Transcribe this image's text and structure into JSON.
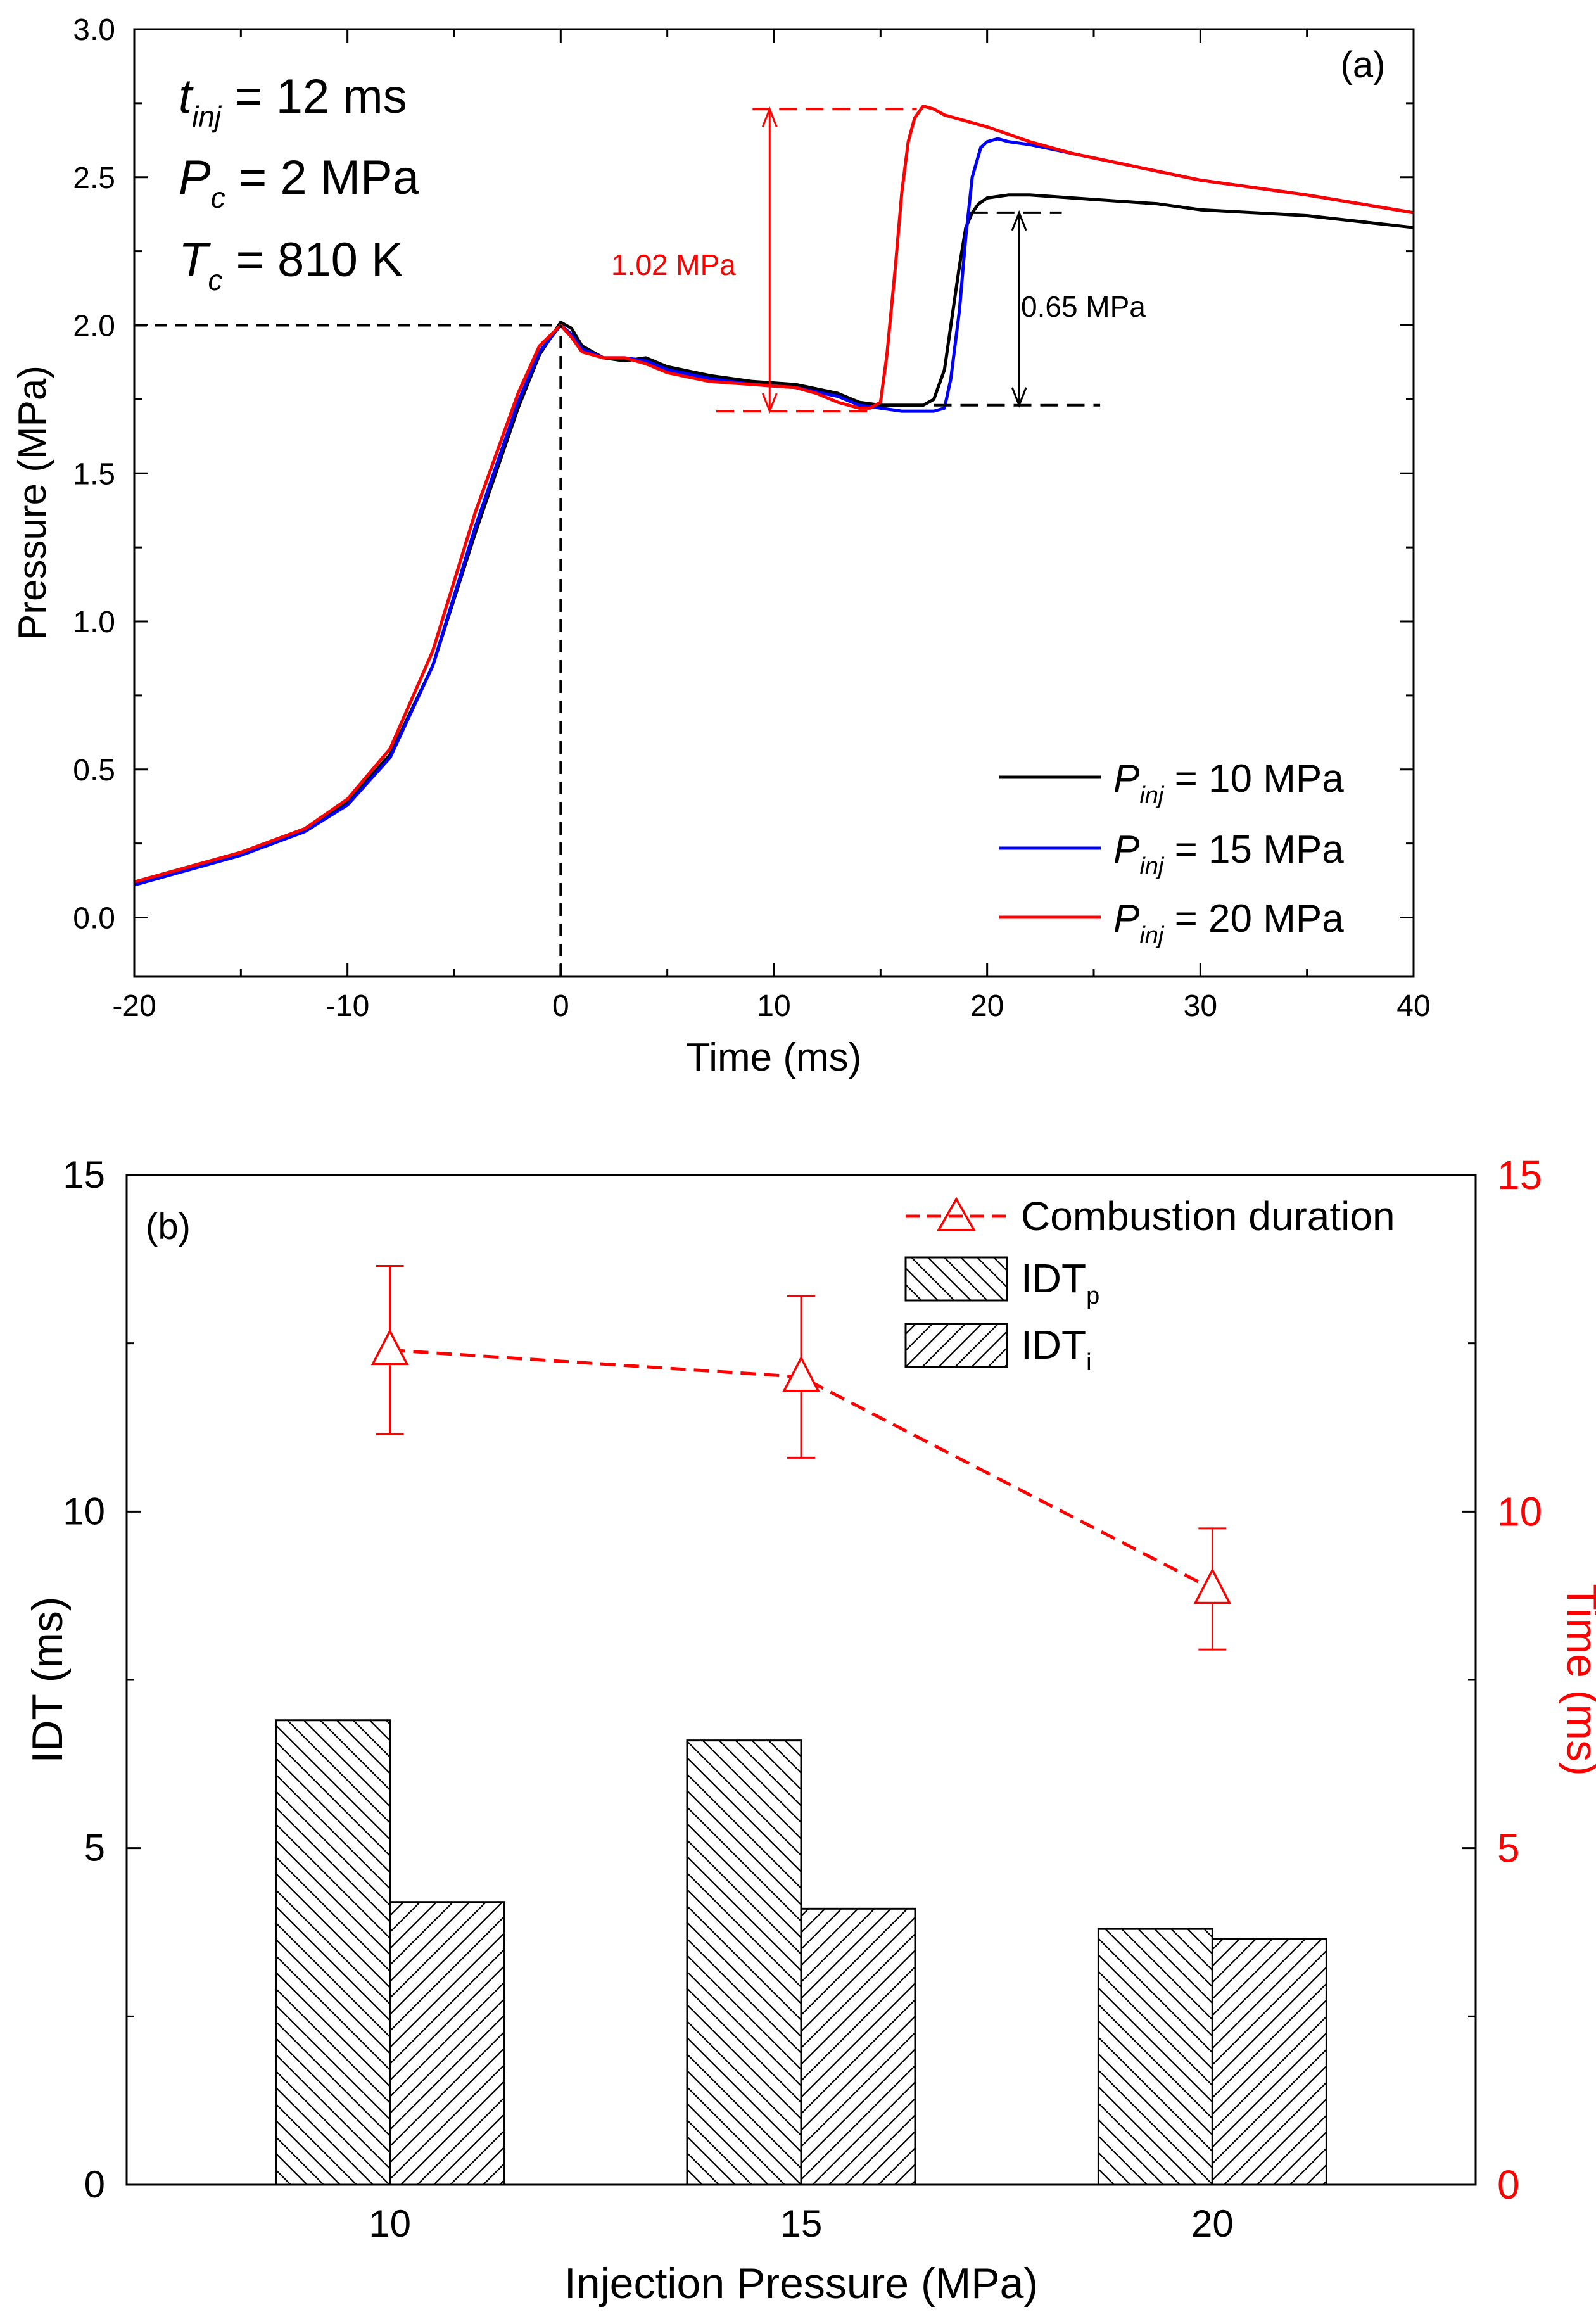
{
  "colors": {
    "black": "#000000",
    "blue": "#0000ff",
    "red": "#ff0000"
  },
  "chart_data": [
    {
      "panel": "(a)",
      "type": "line",
      "xlabel": "Time (ms)",
      "ylabel": "Pressure (MPa)",
      "xlim": [
        -20,
        40
      ],
      "ylim": [
        -0.2,
        3.0
      ],
      "xticks": [
        -20,
        -10,
        0,
        10,
        20,
        30,
        40
      ],
      "xtick_labels": [
        "-20",
        "-10",
        "0",
        "10",
        "20",
        "30",
        "40"
      ],
      "yticks": [
        0.0,
        0.5,
        1.0,
        1.5,
        2.0,
        2.5,
        3.0
      ],
      "ytick_labels": [
        "0.0",
        "0.5",
        "1.0",
        "1.5",
        "2.0",
        "2.5",
        "3.0"
      ],
      "conditions": [
        {
          "symbol": "t",
          "sub": "inj",
          "rest": " = 12 ms"
        },
        {
          "symbol": "P",
          "sub": "c",
          "rest": " = 2 MPa"
        },
        {
          "symbol": "T",
          "sub": "c",
          "rest": " = 810 K"
        }
      ],
      "legend": [
        {
          "symbol": "P",
          "sub": "inj",
          "rest": " = 10 MPa",
          "color": "#000000"
        },
        {
          "symbol": "P",
          "sub": "inj",
          "rest": " = 15 MPa",
          "color": "#0000ff"
        },
        {
          "symbol": "P",
          "sub": "inj",
          "rest": " = 20 MPa",
          "color": "#ff0000"
        }
      ],
      "annotations": {
        "red_rise_label": "1.02 MPa",
        "black_rise_label": "0.65 MPa",
        "red_rise": {
          "x": 9.8,
          "y_low": 1.71,
          "y_high": 2.73
        },
        "black_rise": {
          "x": 21.5,
          "y_low": 1.73,
          "y_high": 2.38
        },
        "red_dash_top": {
          "x1": 9.0,
          "x2": 16.7,
          "y": 2.73
        },
        "red_dash_bottom": {
          "x1": 7.3,
          "x2": 14.7,
          "y": 1.71
        },
        "black_dash_top": {
          "x1": 19.2,
          "x2": 23.5,
          "y": 2.38
        },
        "black_dash_bottom": {
          "x1": 17.5,
          "x2": 25.3,
          "y": 1.73
        },
        "peak_hline": {
          "x1": -20,
          "x2": 0,
          "y": 2.0
        },
        "peak_vline": {
          "x": 0,
          "y1": -0.2,
          "y2": 2.0
        }
      },
      "series": [
        {
          "name": "Pinj = 10 MPa",
          "color": "#000000",
          "x": [
            -20,
            -15,
            -12,
            -10,
            -8,
            -6,
            -4,
            -2,
            -1,
            0,
            0.5,
            1,
            2,
            3,
            4,
            5,
            7,
            9,
            11,
            13,
            14,
            15,
            16,
            17,
            17.5,
            18,
            18.3,
            18.7,
            19,
            19.3,
            19.6,
            20,
            21,
            22,
            24,
            26,
            28,
            30,
            35,
            40
          ],
          "y": [
            0.12,
            0.22,
            0.3,
            0.39,
            0.55,
            0.85,
            1.3,
            1.72,
            1.9,
            2.01,
            1.99,
            1.93,
            1.89,
            1.88,
            1.89,
            1.86,
            1.83,
            1.81,
            1.8,
            1.77,
            1.74,
            1.73,
            1.73,
            1.73,
            1.75,
            1.85,
            2.0,
            2.2,
            2.33,
            2.38,
            2.41,
            2.43,
            2.44,
            2.44,
            2.43,
            2.42,
            2.41,
            2.39,
            2.37,
            2.33
          ]
        },
        {
          "name": "Pinj = 15 MPa",
          "color": "#0000ff",
          "x": [
            -20,
            -15,
            -12,
            -10,
            -8,
            -6,
            -4,
            -2,
            -1,
            0,
            0.5,
            1,
            2,
            3,
            4,
            5,
            7,
            9,
            11,
            13,
            14,
            15,
            16,
            17,
            17.5,
            18,
            18.3,
            18.7,
            19,
            19.3,
            19.7,
            20,
            20.5,
            21,
            22,
            24,
            26,
            28,
            30,
            35,
            40
          ],
          "y": [
            0.11,
            0.21,
            0.29,
            0.38,
            0.54,
            0.85,
            1.32,
            1.74,
            1.91,
            2.0,
            1.97,
            1.92,
            1.89,
            1.89,
            1.88,
            1.85,
            1.82,
            1.8,
            1.79,
            1.76,
            1.73,
            1.72,
            1.71,
            1.71,
            1.71,
            1.72,
            1.82,
            2.05,
            2.3,
            2.5,
            2.6,
            2.62,
            2.63,
            2.62,
            2.61,
            2.58,
            2.55,
            2.52,
            2.49,
            2.44,
            2.38
          ]
        },
        {
          "name": "Pinj = 20 MPa",
          "color": "#ff0000",
          "x": [
            -20,
            -15,
            -12,
            -10,
            -8,
            -6,
            -4,
            -2,
            -1,
            0,
            0.5,
            1,
            2,
            3,
            4,
            5,
            7,
            9,
            11,
            12,
            13,
            14,
            14.5,
            15,
            15.3,
            15.7,
            16,
            16.3,
            16.6,
            17,
            17.5,
            18,
            20,
            22,
            24,
            26,
            28,
            30,
            35,
            40
          ],
          "y": [
            0.12,
            0.22,
            0.3,
            0.4,
            0.57,
            0.9,
            1.37,
            1.77,
            1.93,
            2.0,
            1.96,
            1.91,
            1.89,
            1.89,
            1.87,
            1.84,
            1.81,
            1.8,
            1.79,
            1.77,
            1.74,
            1.72,
            1.72,
            1.74,
            1.9,
            2.2,
            2.45,
            2.62,
            2.7,
            2.74,
            2.73,
            2.71,
            2.67,
            2.62,
            2.58,
            2.55,
            2.52,
            2.49,
            2.44,
            2.38
          ]
        }
      ]
    },
    {
      "panel": "(b)",
      "type": "bar",
      "categories": [
        "10",
        "15",
        "20"
      ],
      "category_values": [
        10,
        15,
        20
      ],
      "xlabel": "Injection Pressure (MPa)",
      "ylabel": "IDT (ms)",
      "y2label": "Time (ms)",
      "xlim": [
        6.8,
        23.2
      ],
      "ylim": [
        0,
        15
      ],
      "y2lim": [
        0,
        15
      ],
      "yticks": [
        0,
        5,
        10,
        15
      ],
      "ytick_labels": [
        "0",
        "5",
        "10",
        "15"
      ],
      "y2ticks": [
        0,
        5,
        10,
        15
      ],
      "y2tick_labels": [
        "0",
        "5",
        "10",
        "15"
      ],
      "series": [
        {
          "name": "IDTp",
          "label": "IDT",
          "sub": "p",
          "pattern": "backslash",
          "values": [
            6.9,
            6.6,
            3.8
          ]
        },
        {
          "name": "IDTi",
          "label": "IDT",
          "sub": "i",
          "pattern": "slash",
          "values": [
            4.2,
            4.1,
            3.65
          ]
        }
      ],
      "line_series": {
        "name": "Combustion duration",
        "label": "Combustion duration",
        "color": "#ff0000",
        "marker": "triangle-open",
        "axis": "right",
        "x": [
          10,
          15,
          20
        ],
        "values": [
          12.4,
          12.0,
          8.85
        ],
        "err_low": [
          11.15,
          10.8,
          7.95
        ],
        "err_high": [
          13.65,
          13.2,
          9.75
        ]
      }
    }
  ]
}
